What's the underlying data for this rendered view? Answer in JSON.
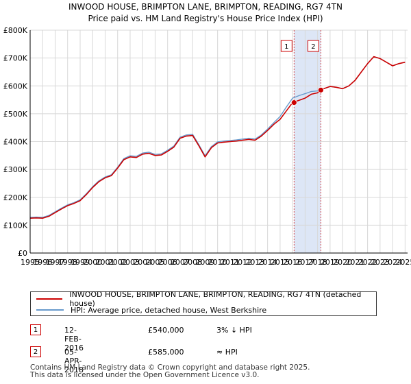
{
  "chart_data": {
    "type": "line",
    "title": "INWOOD HOUSE, BRIMPTON LANE, BRIMPTON, READING, RG7 4TN",
    "subtitle": "Price paid vs. HM Land Registry's House Price Index (HPI)",
    "xlim": [
      1995,
      2025.2
    ],
    "ylim": [
      0,
      800000
    ],
    "xticks": [
      "1995",
      "1996",
      "1997",
      "1998",
      "1999",
      "2000",
      "2001",
      "2002",
      "2003",
      "2004",
      "2005",
      "2006",
      "2007",
      "2008",
      "2009",
      "2010",
      "2011",
      "2012",
      "2013",
      "2014",
      "2015",
      "2016",
      "2017",
      "2018",
      "2019",
      "2020",
      "2021",
      "2022",
      "2023",
      "2024",
      "2025"
    ],
    "yticks": [
      {
        "value": 0,
        "label": "£0"
      },
      {
        "value": 100000,
        "label": "£100K"
      },
      {
        "value": 200000,
        "label": "£200K"
      },
      {
        "value": 300000,
        "label": "£300K"
      },
      {
        "value": 400000,
        "label": "£400K"
      },
      {
        "value": 500000,
        "label": "£500K"
      },
      {
        "value": 600000,
        "label": "£600K"
      },
      {
        "value": 700000,
        "label": "£700K"
      },
      {
        "value": 800000,
        "label": "£800K"
      }
    ],
    "grid": true,
    "series": [
      {
        "name": "INWOOD HOUSE, BRIMPTON LANE, BRIMPTON, READING, RG7 4TN (detached house)",
        "color": "#cc0000",
        "x": [
          1995.0,
          1995.5,
          1996.0,
          1996.5,
          1997.0,
          1997.5,
          1998.0,
          1998.5,
          1999.0,
          1999.5,
          2000.0,
          2000.5,
          2001.0,
          2001.5,
          2002.0,
          2002.5,
          2003.0,
          2003.5,
          2004.0,
          2004.5,
          2005.0,
          2005.5,
          2006.0,
          2006.5,
          2007.0,
          2007.5,
          2008.0,
          2008.5,
          2009.0,
          2009.5,
          2010.0,
          2010.5,
          2011.0,
          2011.5,
          2012.0,
          2012.5,
          2013.0,
          2013.5,
          2014.0,
          2014.5,
          2015.0,
          2015.5,
          2016.0,
          2016.5,
          2017.0,
          2017.5,
          2018.0,
          2018.26,
          2018.5,
          2019.0,
          2019.5,
          2020.0,
          2020.5,
          2021.0,
          2021.5,
          2022.0,
          2022.5,
          2023.0,
          2023.5,
          2024.0,
          2024.5,
          2025.0
        ],
        "values": [
          125000,
          126000,
          125000,
          132000,
          145000,
          158000,
          170000,
          178000,
          188000,
          210000,
          235000,
          256000,
          270000,
          278000,
          305000,
          335000,
          345000,
          343000,
          355000,
          358000,
          350000,
          352000,
          365000,
          380000,
          412000,
          420000,
          422000,
          385000,
          345000,
          378000,
          395000,
          398000,
          400000,
          402000,
          405000,
          408000,
          405000,
          420000,
          440000,
          462000,
          480000,
          510000,
          540000,
          548000,
          556000,
          570000,
          575000,
          585000,
          590000,
          598000,
          595000,
          590000,
          600000,
          620000,
          650000,
          680000,
          705000,
          698000,
          685000,
          672000,
          680000,
          685000
        ]
      },
      {
        "name": "HPI: Average price, detached house, West Berkshire",
        "color": "#6699cc",
        "x": [
          1995.0,
          1995.5,
          1996.0,
          1996.5,
          1997.0,
          1997.5,
          1998.0,
          1998.5,
          1999.0,
          1999.5,
          2000.0,
          2000.5,
          2001.0,
          2001.5,
          2002.0,
          2002.5,
          2003.0,
          2003.5,
          2004.0,
          2004.5,
          2005.0,
          2005.5,
          2006.0,
          2006.5,
          2007.0,
          2007.5,
          2008.0,
          2008.5,
          2009.0,
          2009.5,
          2010.0,
          2010.5,
          2011.0,
          2011.5,
          2012.0,
          2012.5,
          2013.0,
          2013.5,
          2014.0,
          2014.5,
          2015.0,
          2015.5,
          2016.0,
          2016.5,
          2017.0,
          2017.5,
          2018.0,
          2018.26,
          2018.5,
          2019.0,
          2019.5,
          2020.0,
          2020.5,
          2021.0,
          2021.5,
          2022.0,
          2022.5,
          2023.0,
          2023.5,
          2024.0,
          2024.5,
          2025.0
        ],
        "values": [
          128000,
          129000,
          128000,
          135000,
          148000,
          161000,
          173000,
          181000,
          191000,
          213000,
          238000,
          259000,
          273000,
          281000,
          308000,
          339000,
          349000,
          347000,
          359000,
          362000,
          354000,
          356000,
          369000,
          384000,
          416000,
          424000,
          426000,
          389000,
          349000,
          382000,
          399000,
          402000,
          404000,
          406000,
          409000,
          412000,
          409000,
          424000,
          445000,
          468000,
          490000,
          524000,
          556000,
          565000,
          572000,
          580000,
          582000,
          585000,
          590000,
          598000,
          595000,
          590000,
          600000,
          620000,
          650000,
          680000,
          705000,
          698000,
          685000,
          672000,
          680000,
          685000
        ]
      }
    ],
    "sales": [
      {
        "id": "1",
        "x": 2016.12,
        "value": 540000
      },
      {
        "id": "2",
        "x": 2018.26,
        "value": 585000
      }
    ],
    "span": [
      2016.12,
      2018.26
    ]
  },
  "legend": {
    "property_label": "INWOOD HOUSE, BRIMPTON LANE, BRIMPTON, READING, RG7 4TN (detached house)",
    "hpi_label": "HPI: Average price, detached house, West Berkshire",
    "property_color": "#cc0000",
    "hpi_color": "#6699cc"
  },
  "sales_table": [
    {
      "id": "1",
      "date": "12-FEB-2016",
      "price": "£540,000",
      "hpi": "3% ↓ HPI"
    },
    {
      "id": "2",
      "date": "05-APR-2018",
      "price": "£585,000",
      "hpi": "≈ HPI"
    }
  ],
  "footer": {
    "line1": "Contains HM Land Registry data © Crown copyright and database right 2025.",
    "line2": "This data is licensed under the Open Government Licence v3.0."
  }
}
